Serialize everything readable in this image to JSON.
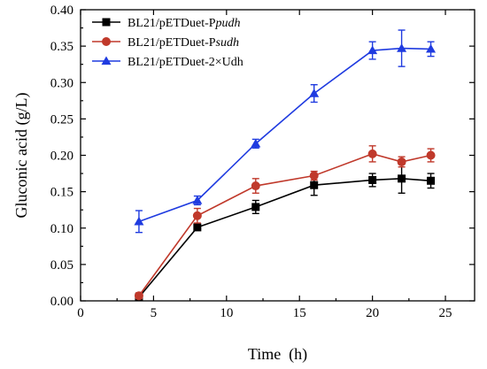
{
  "chart_data": {
    "type": "line",
    "xlabel": "Time  (h)",
    "ylabel": "Gluconic acid (g/L)",
    "xlim": [
      0,
      27
    ],
    "ylim": [
      0,
      0.4
    ],
    "x_ticks": [
      0,
      5,
      10,
      15,
      20,
      25
    ],
    "y_ticks": [
      0.0,
      0.05,
      0.1,
      0.15,
      0.2,
      0.25,
      0.3,
      0.35,
      0.4
    ],
    "x_tick_labels": [
      "0",
      "5",
      "10",
      "15",
      "20",
      "25"
    ],
    "y_tick_labels": [
      "0.00",
      "0.05",
      "0.10",
      "0.15",
      "0.20",
      "0.25",
      "0.30",
      "0.35",
      "0.40"
    ],
    "legend_position": "top-left",
    "series": [
      {
        "name_prefix": "BL21/pETDuet-P",
        "name_italic": "pudh",
        "color": "#000000",
        "marker": "square",
        "x": [
          4,
          8,
          12,
          16,
          20,
          22,
          24
        ],
        "y": [
          0.005,
          0.101,
          0.129,
          0.159,
          0.166,
          0.168,
          0.165
        ],
        "err": [
          0.004,
          0.004,
          0.009,
          0.014,
          0.009,
          0.02,
          0.01
        ]
      },
      {
        "name_prefix": "BL21/pETDuet-P",
        "name_italic": "sudh",
        "color": "#c0392b",
        "marker": "circle",
        "x": [
          4,
          8,
          12,
          16,
          20,
          22,
          24
        ],
        "y": [
          0.007,
          0.117,
          0.158,
          0.172,
          0.202,
          0.191,
          0.2
        ],
        "err": [
          0.004,
          0.01,
          0.01,
          0.006,
          0.011,
          0.007,
          0.009
        ]
      },
      {
        "name_prefix": "BL21/pETDuet-2×Udh",
        "name_italic": "",
        "color": "#1f3be0",
        "marker": "triangle",
        "x": [
          4,
          8,
          12,
          16,
          20,
          22,
          24
        ],
        "y": [
          0.109,
          0.138,
          0.216,
          0.285,
          0.344,
          0.347,
          0.346
        ],
        "err": [
          0.015,
          0.006,
          0.006,
          0.012,
          0.012,
          0.025,
          0.01
        ]
      }
    ]
  }
}
